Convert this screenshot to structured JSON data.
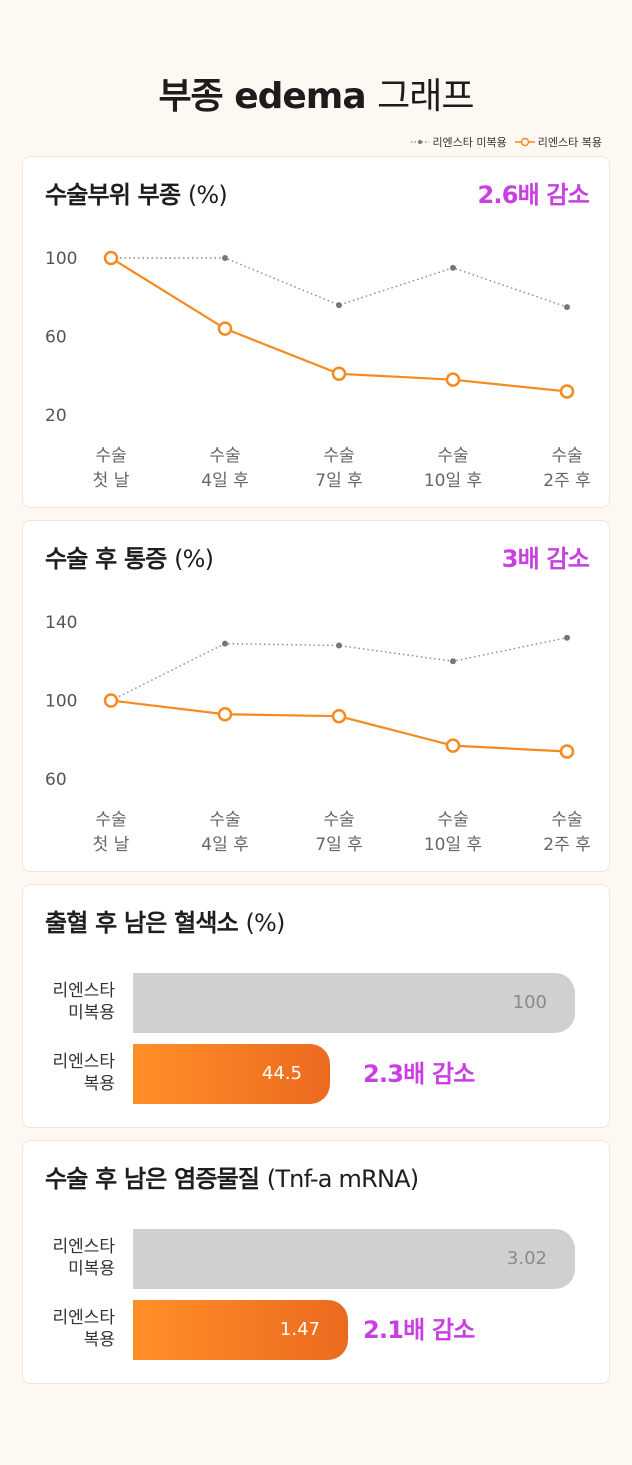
{
  "page": {
    "title_bold": "부종 edema",
    "title_light": "그래프"
  },
  "legend": {
    "untreated": "리엔스타 미복용",
    "treated": "리엔스타 복용"
  },
  "colors": {
    "orange": "#f58a1f",
    "grey_line": "#888888",
    "badge": "#c83fe2",
    "bar_grey": "#d0d0d0"
  },
  "cards": {
    "swelling": {
      "title": "수술부위 부종",
      "unit": "(%)",
      "badge": "2.6배 감소"
    },
    "pain": {
      "title": "수술 후 통증",
      "unit": "(%)",
      "badge": "3배 감소"
    },
    "bleeding": {
      "title": "출혈 후 남은 혈색소",
      "unit": "(%)",
      "badge": "2.3배 감소",
      "label_untreated": "리엔스타\n미복용",
      "label_treated": "리엔스타\n복용",
      "value_untreated": "100",
      "value_treated": "44.5"
    },
    "inflammation": {
      "title": "수술 후 남은 염증물질",
      "unit": "(Tnf-a mRNA)",
      "badge": "2.1배 감소",
      "label_untreated": "리엔스타\n미복용",
      "label_treated": "리엔스타\n복용",
      "value_untreated": "3.02",
      "value_treated": "1.47"
    }
  },
  "chart_data": [
    {
      "type": "line",
      "title": "수술부위 부종 (%)",
      "categories": [
        "수술 첫 날",
        "수술 4일 후",
        "수술 7일 후",
        "수술 10일 후",
        "수술 2주 후"
      ],
      "category_lines": [
        [
          "수술",
          "첫 날"
        ],
        [
          "수술",
          "4일 후"
        ],
        [
          "수술",
          "7일 후"
        ],
        [
          "수술",
          "10일 후"
        ],
        [
          "수술",
          "2주 후"
        ]
      ],
      "yticks": [
        100,
        60,
        20
      ],
      "ylim": [
        20,
        100
      ],
      "series": [
        {
          "name": "리엔스타 미복용",
          "values": [
            100,
            100,
            76,
            95,
            75
          ]
        },
        {
          "name": "리엔스타 복용",
          "values": [
            100,
            64,
            41,
            38,
            32
          ]
        }
      ],
      "grid": false,
      "legend": "top-right"
    },
    {
      "type": "line",
      "title": "수술 후 통증 (%)",
      "categories": [
        "수술 첫 날",
        "수술 4일 후",
        "수술 7일 후",
        "수술 10일 후",
        "수술 2주 후"
      ],
      "category_lines": [
        [
          "수술",
          "첫 날"
        ],
        [
          "수술",
          "4일 후"
        ],
        [
          "수술",
          "7일 후"
        ],
        [
          "수술",
          "10일 후"
        ],
        [
          "수술",
          "2주 후"
        ]
      ],
      "yticks": [
        140,
        100,
        60
      ],
      "ylim": [
        60,
        140
      ],
      "series": [
        {
          "name": "리엔스타 미복용",
          "values": [
            100,
            129,
            128,
            120,
            132
          ]
        },
        {
          "name": "리엔스타 복용",
          "values": [
            100,
            93,
            92,
            77,
            74
          ]
        }
      ],
      "grid": false,
      "legend": "top-right"
    },
    {
      "type": "bar",
      "title": "출혈 후 남은 혈색소 (%)",
      "categories": [
        "리엔스타 미복용",
        "리엔스타 복용"
      ],
      "values": [
        100,
        44.5
      ],
      "annotation": "2.3배 감소"
    },
    {
      "type": "bar",
      "title": "수술 후 남은 염증물질 (Tnf-a mRNA)",
      "categories": [
        "리엔스타 미복용",
        "리엔스타 복용"
      ],
      "values": [
        3.02,
        1.47
      ],
      "annotation": "2.1배 감소"
    }
  ]
}
